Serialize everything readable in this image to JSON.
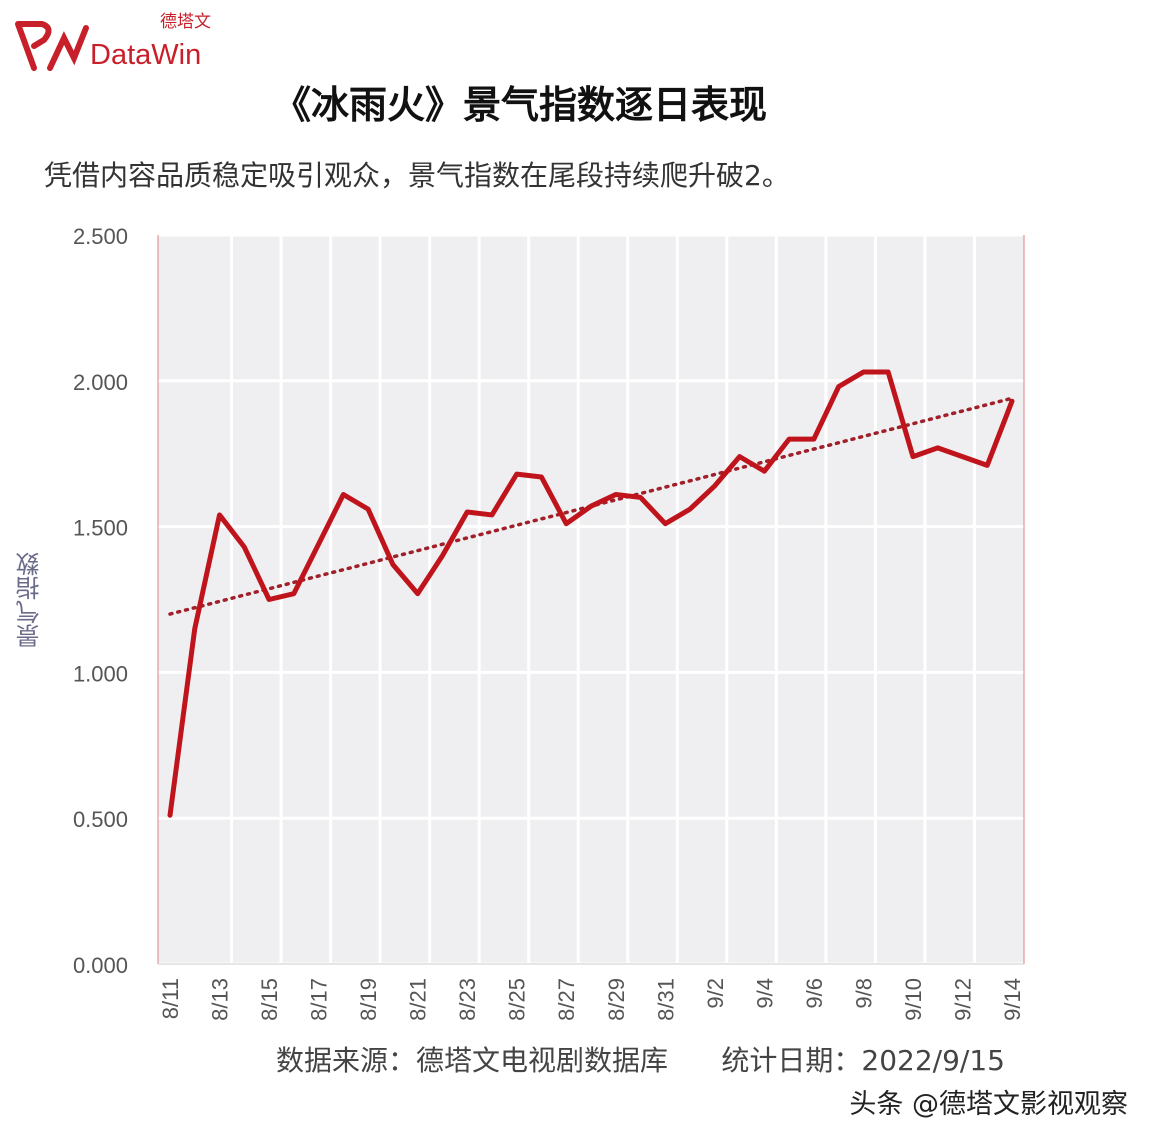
{
  "logo": {
    "text_cn": "德塔文",
    "text_en": "DataWin"
  },
  "colors": {
    "line": "#c0141c",
    "trend": "#a0202a",
    "plot_bg": "#efeff1",
    "grid": "#ffffff",
    "axis": "#e08080"
  },
  "chart_data": {
    "type": "line",
    "title": "《冰雨火》景气指数逐日表现",
    "subtitle": "凭借内容品质稳定吸引观众，景气指数在尾段持续爬升破2。",
    "xlabel": "",
    "ylabel": "景气指数",
    "ylim": [
      0,
      2.5
    ],
    "yticks": [
      "0.000",
      "0.500",
      "1.000",
      "1.500",
      "2.000",
      "2.500"
    ],
    "grid": true,
    "x": [
      "8/11",
      "8/12",
      "8/13",
      "8/14",
      "8/15",
      "8/16",
      "8/17",
      "8/18",
      "8/19",
      "8/20",
      "8/21",
      "8/22",
      "8/23",
      "8/24",
      "8/25",
      "8/26",
      "8/27",
      "8/28",
      "8/29",
      "8/30",
      "8/31",
      "9/1",
      "9/2",
      "9/3",
      "9/4",
      "9/5",
      "9/6",
      "9/7",
      "9/8",
      "9/9",
      "9/10",
      "9/11",
      "9/12",
      "9/13",
      "9/14"
    ],
    "xtick_labels": [
      "8/11",
      "8/13",
      "8/15",
      "8/17",
      "8/19",
      "8/21",
      "8/23",
      "8/25",
      "8/27",
      "8/29",
      "8/31",
      "9/2",
      "9/4",
      "9/6",
      "9/8",
      "9/10",
      "9/12",
      "9/14"
    ],
    "series": [
      {
        "values": [
          0.51,
          1.15,
          1.54,
          1.43,
          1.25,
          1.27,
          1.44,
          1.61,
          1.56,
          1.37,
          1.27,
          1.4,
          1.55,
          1.54,
          1.68,
          1.67,
          1.51,
          1.57,
          1.61,
          1.6,
          1.51,
          1.56,
          1.64,
          1.74,
          1.69,
          1.8,
          1.8,
          1.98,
          2.03,
          2.03,
          1.74,
          1.77,
          1.74,
          1.71,
          1.93
        ],
        "style": "solid"
      }
    ],
    "trendline": {
      "type": "linear",
      "start": 1.2,
      "end": 1.94,
      "style": "dotted"
    }
  },
  "footer": {
    "source": "数据来源：德塔文电视剧数据库",
    "date": "统计日期：2022/9/15"
  },
  "watermark": "头条 @德塔文影视观察"
}
